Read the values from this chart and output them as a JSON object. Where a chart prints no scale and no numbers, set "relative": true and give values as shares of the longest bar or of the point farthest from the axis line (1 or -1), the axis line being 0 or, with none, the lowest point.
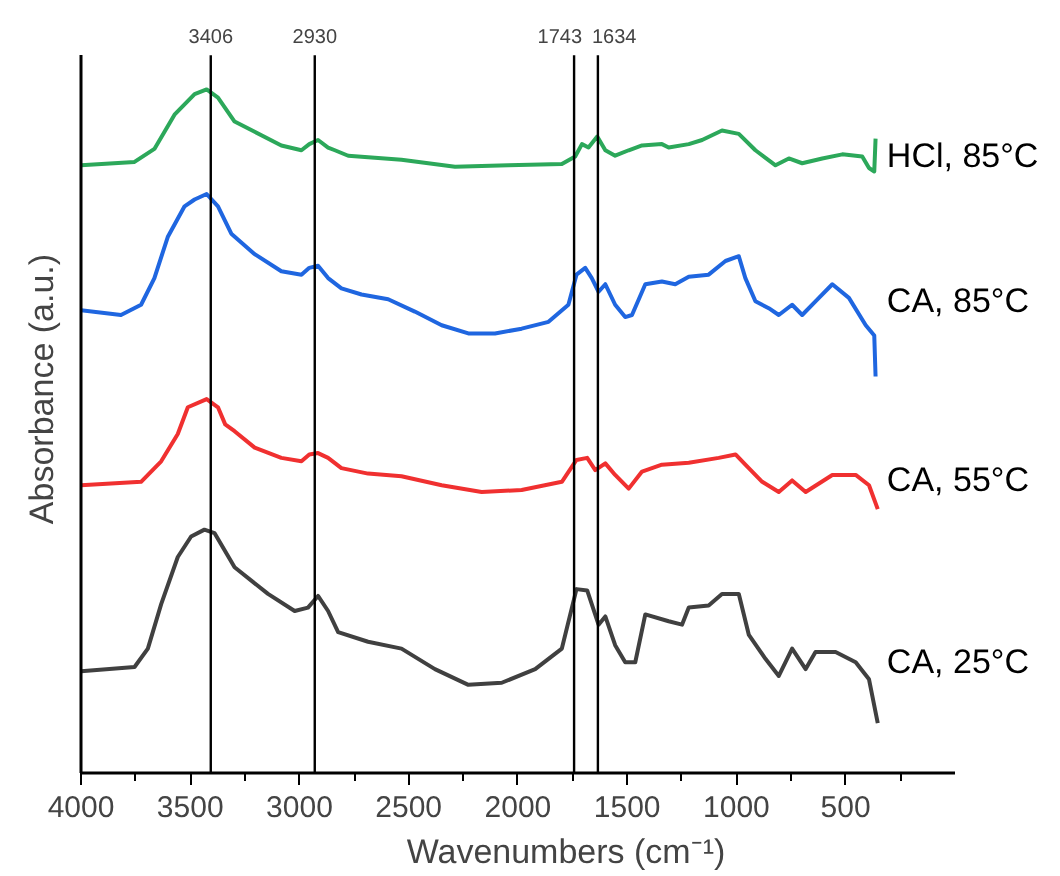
{
  "chart_data": {
    "type": "line",
    "relative": true,
    "xlabel": "Wavenumbers (cm⁻¹)",
    "ylabel": "Absorbance (a.u.)",
    "xlim": [
      4000,
      0
    ],
    "xticks": [
      4000,
      {
        "value": 3750,
        "label": null
      },
      3500,
      {
        "value": 3250,
        "label": null
      },
      3000,
      {
        "value": 2750,
        "label": null
      },
      2500,
      {
        "value": 2250,
        "label": null
      },
      2000,
      {
        "value": 1750,
        "label": null
      },
      1500,
      {
        "value": 1250,
        "label": null
      },
      1000,
      {
        "value": 750,
        "label": null
      },
      500,
      {
        "value": 250,
        "label": null
      }
    ],
    "grid": false,
    "marker": "none",
    "line_style": "solid",
    "ref_lines": [
      {
        "axis": "x",
        "value": 3406,
        "label": "3406",
        "color": "#000000"
      },
      {
        "axis": "x",
        "value": 2930,
        "label": "2930",
        "color": "#000000"
      },
      {
        "axis": "x",
        "value": 1743,
        "label": "1743",
        "color": "#000000"
      },
      {
        "axis": "x",
        "value": 1634,
        "label": "1634",
        "color": "#000000"
      }
    ],
    "series": [
      {
        "name": "HCl, 85°C",
        "color": "#2ca85a",
        "x": [
          4000,
          3755,
          3664,
          3572,
          3480,
          3425,
          3373,
          3297,
          3205,
          3083,
          2991,
          2955,
          2915,
          2869,
          2838,
          2777,
          2533,
          2288,
          2044,
          1799,
          1738,
          1707,
          1677,
          1637,
          1600,
          1555,
          1493,
          1432,
          1341,
          1310,
          1218,
          1157,
          1066,
          989,
          913,
          821,
          760,
          699,
          607,
          515,
          424,
          393,
          369,
          363
        ],
        "values": [
          0.889,
          0.894,
          0.913,
          0.963,
          0.993,
          1.0,
          0.988,
          0.953,
          0.938,
          0.918,
          0.911,
          0.92,
          0.926,
          0.915,
          0.911,
          0.903,
          0.897,
          0.887,
          0.889,
          0.891,
          0.902,
          0.92,
          0.915,
          0.931,
          0.911,
          0.903,
          0.911,
          0.918,
          0.92,
          0.915,
          0.92,
          0.926,
          0.94,
          0.935,
          0.911,
          0.889,
          0.899,
          0.892,
          0.899,
          0.905,
          0.902,
          0.885,
          0.88,
          0.928
        ]
      },
      {
        "name": "CA, 85°C",
        "color": "#1f66e0",
        "x": [
          4000,
          3817,
          3725,
          3664,
          3603,
          3526,
          3480,
          3425,
          3373,
          3312,
          3205,
          3083,
          2991,
          2955,
          2915,
          2869,
          2808,
          2716,
          2594,
          2472,
          2349,
          2227,
          2105,
          1983,
          1860,
          1769,
          1732,
          1692,
          1662,
          1631,
          1600,
          1555,
          1509,
          1478,
          1417,
          1341,
          1280,
          1218,
          1127,
          1050,
          989,
          959,
          913,
          852,
          806,
          745,
          699,
          638,
          561,
          485,
          408,
          369,
          363
        ],
        "values": [
          0.677,
          0.67,
          0.685,
          0.724,
          0.784,
          0.829,
          0.839,
          0.847,
          0.829,
          0.789,
          0.759,
          0.734,
          0.729,
          0.739,
          0.742,
          0.724,
          0.709,
          0.7,
          0.693,
          0.675,
          0.655,
          0.643,
          0.643,
          0.65,
          0.66,
          0.685,
          0.729,
          0.739,
          0.724,
          0.704,
          0.715,
          0.685,
          0.667,
          0.67,
          0.715,
          0.719,
          0.715,
          0.726,
          0.729,
          0.749,
          0.756,
          0.724,
          0.69,
          0.68,
          0.67,
          0.685,
          0.67,
          0.69,
          0.715,
          0.695,
          0.655,
          0.64,
          0.58
        ]
      },
      {
        "name": "CA, 55°C",
        "color": "#f03030",
        "x": [
          4000,
          3725,
          3633,
          3557,
          3511,
          3425,
          3373,
          3340,
          3297,
          3205,
          3083,
          2991,
          2955,
          2915,
          2869,
          2808,
          2686,
          2533,
          2349,
          2166,
          1983,
          1799,
          1732,
          1683,
          1646,
          1600,
          1555,
          1493,
          1432,
          1341,
          1218,
          1081,
          1004,
          959,
          882,
          806,
          745,
          683,
          561,
          454,
          393,
          353
        ],
        "values": [
          0.421,
          0.426,
          0.456,
          0.496,
          0.535,
          0.547,
          0.535,
          0.51,
          0.5,
          0.476,
          0.461,
          0.456,
          0.466,
          0.468,
          0.461,
          0.446,
          0.438,
          0.434,
          0.421,
          0.411,
          0.414,
          0.426,
          0.458,
          0.461,
          0.443,
          0.453,
          0.436,
          0.416,
          0.441,
          0.451,
          0.454,
          0.461,
          0.466,
          0.451,
          0.426,
          0.411,
          0.428,
          0.411,
          0.436,
          0.436,
          0.421,
          0.386
        ]
      },
      {
        "name": "CA, 25°C",
        "color": "#404040",
        "x": [
          4000,
          3755,
          3694,
          3633,
          3557,
          3496,
          3435,
          3389,
          3297,
          3144,
          3022,
          2961,
          2915,
          2869,
          2823,
          2686,
          2533,
          2380,
          2227,
          2074,
          1921,
          1799,
          1732,
          1683,
          1631,
          1600,
          1555,
          1509,
          1463,
          1417,
          1310,
          1249,
          1218,
          1127,
          1066,
          989,
          943,
          867,
          806,
          745,
          683,
          638,
          546,
          454,
          393,
          353
        ],
        "values": [
          0.149,
          0.155,
          0.182,
          0.247,
          0.316,
          0.346,
          0.356,
          0.351,
          0.301,
          0.262,
          0.237,
          0.242,
          0.259,
          0.237,
          0.206,
          0.192,
          0.182,
          0.152,
          0.129,
          0.132,
          0.152,
          0.182,
          0.269,
          0.267,
          0.217,
          0.229,
          0.187,
          0.162,
          0.162,
          0.232,
          0.222,
          0.217,
          0.242,
          0.245,
          0.262,
          0.262,
          0.202,
          0.167,
          0.142,
          0.182,
          0.152,
          0.177,
          0.177,
          0.162,
          0.137,
          0.073
        ]
      }
    ]
  }
}
